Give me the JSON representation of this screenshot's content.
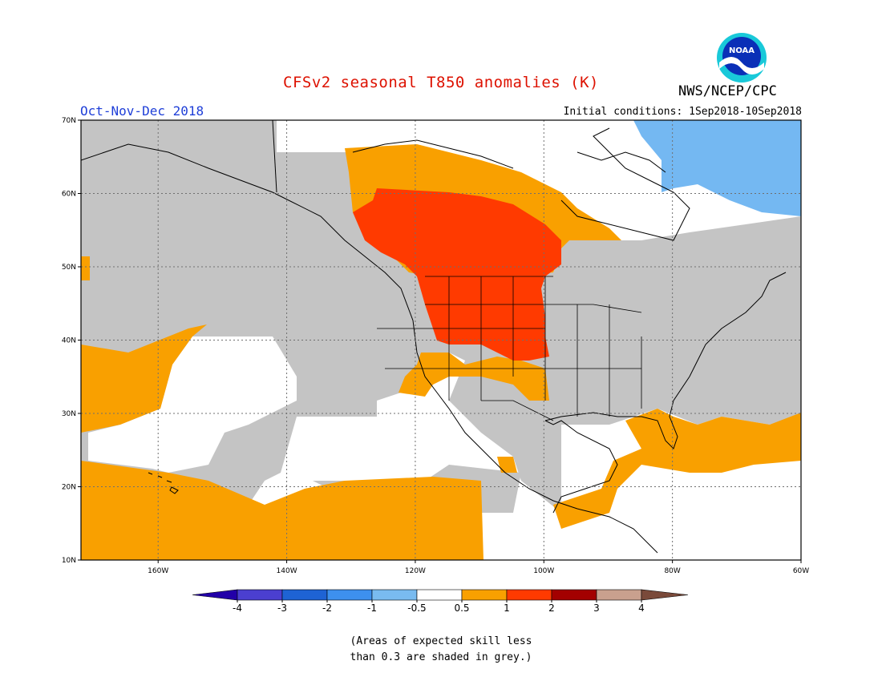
{
  "header": {
    "title": "CFSv2 seasonal T850 anomalies (K)",
    "agency": "NWS/NCEP/CPC",
    "logo_text": "NOAA",
    "season": "Oct-Nov-Dec 2018",
    "initial_conditions": "Initial conditions: 1Sep2018-10Sep2018"
  },
  "map": {
    "lon_range": [
      -172,
      -60
    ],
    "lat_range": [
      10,
      70
    ],
    "lon_ticks": [
      "160W",
      "140W",
      "120W",
      "100W",
      "80W",
      "60W"
    ],
    "lat_ticks": [
      "10N",
      "20N",
      "30N",
      "40N",
      "50N",
      "60N",
      "70N"
    ],
    "colors": {
      "low_skill": "#c4c4c4",
      "anom_0p5_1": "#f9a000",
      "anom_1_2": "#ff3a00",
      "anom_m1_m0p5": "#74b8f2",
      "coastline": "#000000"
    }
  },
  "colorbar": {
    "labels": [
      "-4",
      "-3",
      "-2",
      "-1",
      "-0.5",
      "0.5",
      "1",
      "2",
      "3",
      "4"
    ],
    "colors": [
      "#2200a8",
      "#4b3fd0",
      "#1e63d4",
      "#3d90ee",
      "#79bbf0",
      "#ffffff",
      "#f9a000",
      "#ff3a00",
      "#a30000",
      "#c9a08e",
      "#7a4a3a"
    ]
  },
  "footnote": [
    "(Areas of expected skill less",
    "than 0.3 are shaded in grey.)"
  ]
}
